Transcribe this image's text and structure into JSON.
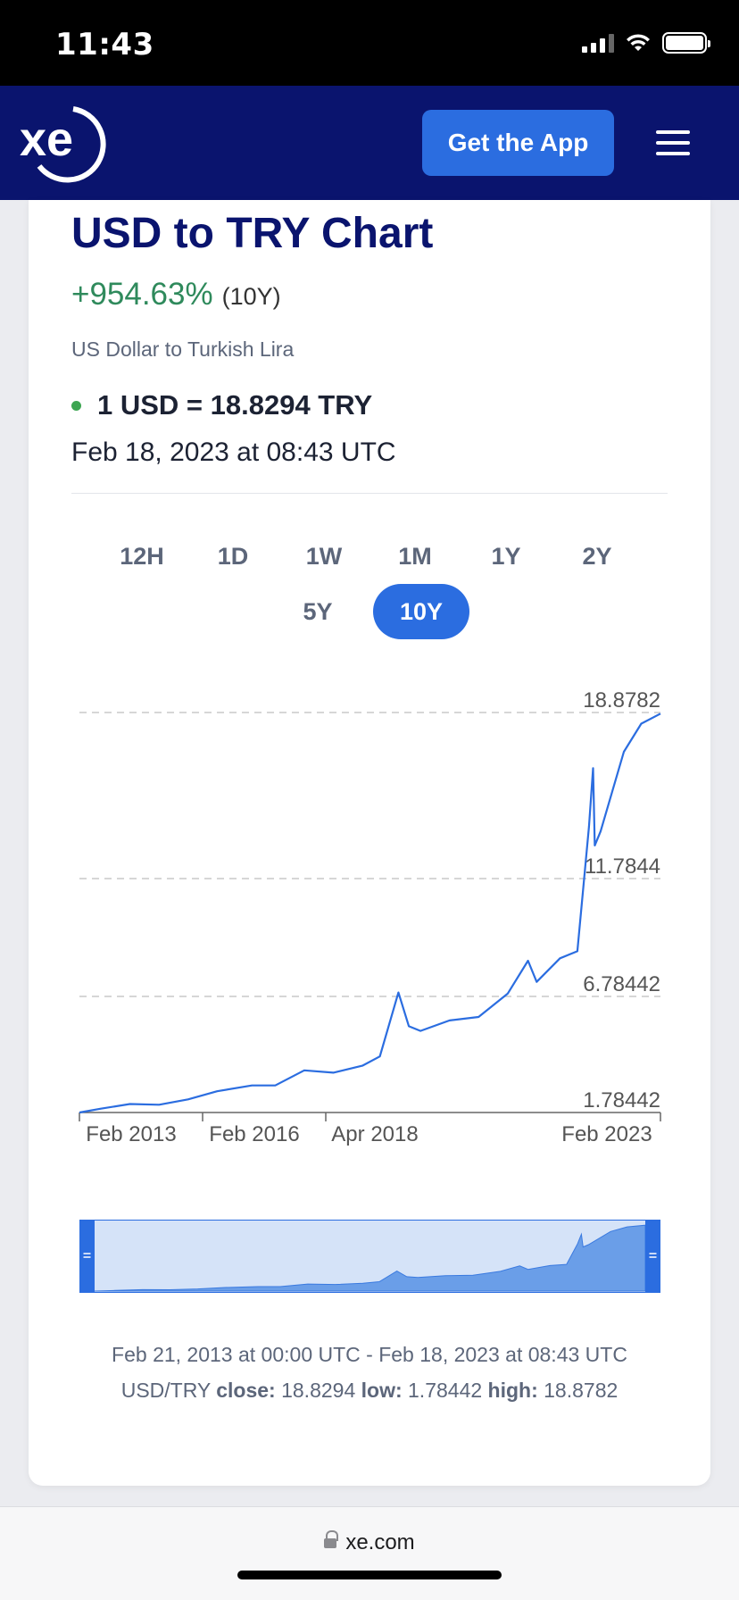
{
  "status_bar": {
    "time": "11:43",
    "icons": [
      "signal-icon",
      "wifi-icon",
      "battery-icon"
    ]
  },
  "header": {
    "logo_text": "xe",
    "cta_label": "Get the App",
    "menu_icon": "hamburger-menu-icon"
  },
  "main": {
    "title": "USD to TRY Chart",
    "change_value": "+954.63%",
    "change_period": "(10Y)",
    "subtitle": "US Dollar to Turkish Lira",
    "rate": "1 USD = 18.8294 TRY",
    "timestamp": "Feb 18, 2023 at 08:43 UTC",
    "ranges_row1": [
      "12H",
      "1D",
      "1W",
      "1M",
      "1Y",
      "2Y"
    ],
    "ranges_row2": [
      "5Y",
      "10Y"
    ],
    "active_range": "10Y"
  },
  "colors": {
    "navy": "#0a146e",
    "accent": "#2b6de0",
    "positive": "#2f8a5c",
    "live_dot": "#3da552"
  },
  "chart_data": {
    "type": "line",
    "series": [
      {
        "values_xy": [
          [
            2013.13,
            1.78
          ],
          [
            2013.5,
            1.95
          ],
          [
            2014.0,
            2.15
          ],
          [
            2014.5,
            2.12
          ],
          [
            2015.0,
            2.35
          ],
          [
            2015.5,
            2.7
          ],
          [
            2016.1,
            2.95
          ],
          [
            2016.5,
            2.95
          ],
          [
            2017.0,
            3.6
          ],
          [
            2017.5,
            3.5
          ],
          [
            2018.0,
            3.8
          ],
          [
            2018.3,
            4.2
          ],
          [
            2018.62,
            6.95
          ],
          [
            2018.8,
            5.5
          ],
          [
            2019.0,
            5.3
          ],
          [
            2019.5,
            5.75
          ],
          [
            2020.0,
            5.9
          ],
          [
            2020.5,
            6.9
          ],
          [
            2020.85,
            8.3
          ],
          [
            2021.0,
            7.4
          ],
          [
            2021.4,
            8.4
          ],
          [
            2021.7,
            8.7
          ],
          [
            2021.9,
            14.0
          ],
          [
            2021.97,
            16.5
          ],
          [
            2022.0,
            13.2
          ],
          [
            2022.1,
            13.8
          ],
          [
            2022.5,
            17.2
          ],
          [
            2022.8,
            18.4
          ],
          [
            2023.13,
            18.83
          ]
        ]
      }
    ],
    "yticks": [
      "18.8782",
      "11.7844",
      "6.78442",
      "1.78442"
    ],
    "ylim": [
      1.78442,
      18.8782
    ],
    "xticks": [
      "Feb 2013",
      "Feb 2016",
      "Apr 2018",
      "Feb 2023"
    ],
    "xlim": [
      2013.13,
      2023.13
    ],
    "grid": "dashed horizontal"
  },
  "footer": {
    "range": "Feb 21, 2013 at 00:00 UTC - Feb 18, 2023 at 08:43 UTC",
    "pair": "USD/TRY",
    "close_label": "close:",
    "close_value": "18.8294",
    "low_label": "low:",
    "low_value": "1.78442",
    "high_label": "high:",
    "high_value": "18.8782"
  },
  "browser": {
    "url": "xe.com"
  }
}
